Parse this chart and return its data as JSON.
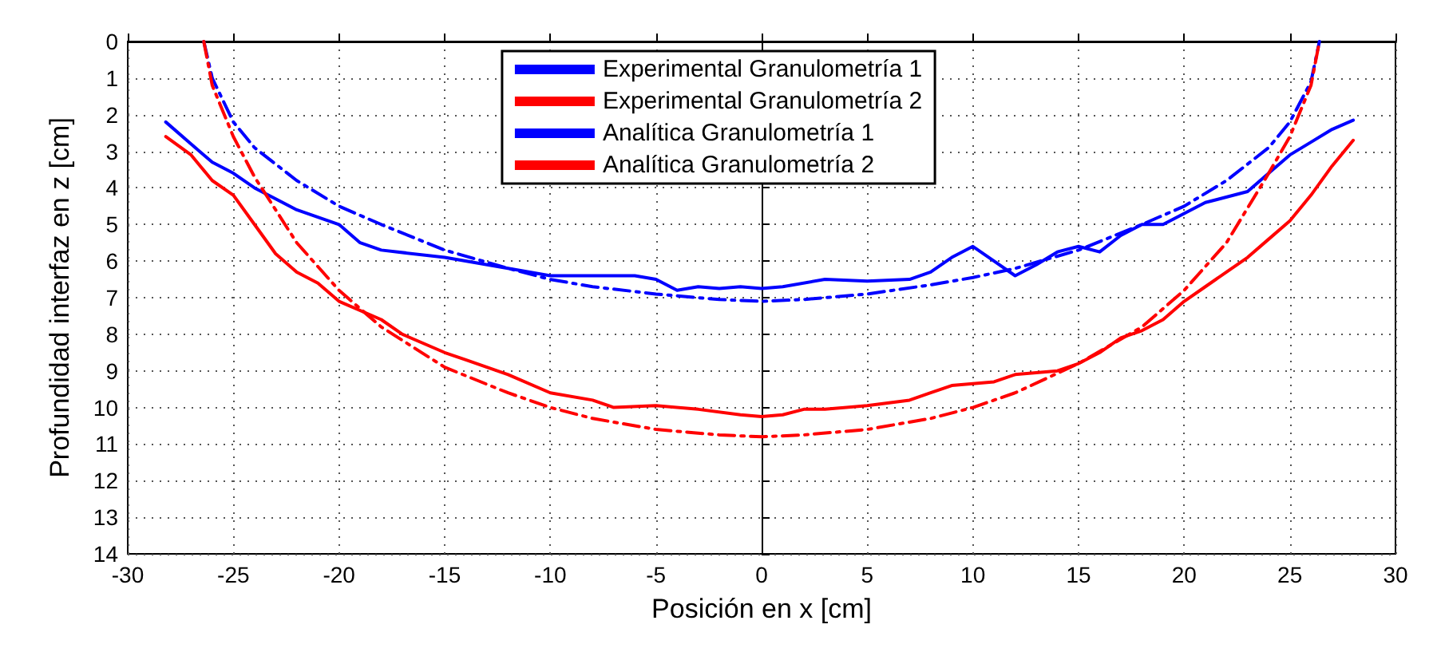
{
  "chart_data": {
    "type": "line",
    "xlabel": "Posición en x [cm]",
    "ylabel": "Profundidad interfaz en z [cm]",
    "xlim": [
      -30,
      30
    ],
    "xticks": [
      -30,
      -25,
      -20,
      -15,
      -10,
      -5,
      0,
      5,
      10,
      15,
      20,
      25,
      30
    ],
    "ylim": [
      14,
      0
    ],
    "yticks": [
      0,
      1,
      2,
      3,
      4,
      5,
      6,
      7,
      8,
      9,
      10,
      11,
      12,
      13,
      14
    ],
    "grid": true,
    "legend": "top",
    "marker": "none",
    "series": [
      {
        "name": "Experimental Granulometría 1",
        "color": "#0000ff",
        "line_style": "solid",
        "x": [
          -28.2,
          -27,
          -26,
          -25,
          -24,
          -22,
          -20,
          -19,
          -18,
          -15,
          -12,
          -10,
          -8,
          -6,
          -5,
          -4,
          -3,
          -2,
          -1,
          0,
          1,
          3,
          5,
          7,
          8,
          9,
          10,
          11,
          12,
          13,
          14,
          15,
          16,
          17,
          18,
          19,
          20,
          21,
          23,
          24,
          25,
          26,
          27,
          28
        ],
        "values": [
          2.2,
          2.8,
          3.3,
          3.6,
          4.0,
          4.6,
          5.0,
          5.5,
          5.7,
          5.9,
          6.2,
          6.4,
          6.4,
          6.4,
          6.5,
          6.8,
          6.7,
          6.75,
          6.7,
          6.75,
          6.7,
          6.5,
          6.55,
          6.5,
          6.3,
          5.9,
          5.6,
          6.0,
          6.4,
          6.1,
          5.75,
          5.6,
          5.75,
          5.3,
          5.0,
          5.0,
          4.7,
          4.4,
          4.1,
          3.6,
          3.1,
          2.75,
          2.4,
          2.15
        ]
      },
      {
        "name": "Experimental Granulometría 2",
        "color": "#ff0000",
        "line_style": "solid",
        "x": [
          -28.2,
          -27,
          -26,
          -25,
          -24,
          -23,
          -22,
          -21,
          -20,
          -18,
          -17,
          -15,
          -14,
          -12,
          -10,
          -8,
          -7,
          -5,
          -3,
          -1,
          0,
          1,
          2,
          3,
          5,
          7,
          8,
          9,
          11,
          12,
          14,
          15,
          16,
          17,
          18,
          19,
          20,
          21,
          22,
          23,
          24,
          25,
          26,
          27,
          28
        ],
        "values": [
          2.6,
          3.1,
          3.8,
          4.2,
          5.0,
          5.8,
          6.3,
          6.6,
          7.1,
          7.6,
          8.0,
          8.5,
          8.7,
          9.1,
          9.6,
          9.8,
          10.0,
          9.95,
          10.05,
          10.2,
          10.25,
          10.2,
          10.05,
          10.05,
          9.95,
          9.8,
          9.6,
          9.4,
          9.3,
          9.1,
          9.0,
          8.8,
          8.5,
          8.1,
          7.9,
          7.6,
          7.1,
          6.7,
          6.3,
          5.9,
          5.4,
          4.9,
          4.2,
          3.4,
          2.7
        ]
      },
      {
        "name": "Analítica Granulometría 1",
        "color": "#0000ff",
        "line_style": "dashed",
        "x": [
          -26.4,
          -26,
          -25,
          -24,
          -22,
          -20,
          -18,
          -15,
          -12,
          -10,
          -8,
          -5,
          -2,
          0,
          2,
          5,
          8,
          10,
          12,
          15,
          18,
          20,
          22,
          24,
          25,
          26,
          26.4
        ],
        "values": [
          0,
          1.0,
          2.2,
          2.9,
          3.8,
          4.5,
          5.0,
          5.7,
          6.2,
          6.5,
          6.7,
          6.9,
          7.05,
          7.1,
          7.05,
          6.9,
          6.65,
          6.45,
          6.2,
          5.7,
          5.0,
          4.5,
          3.8,
          2.9,
          2.2,
          1.1,
          0
        ]
      },
      {
        "name": "Analítica Granulometría 2",
        "color": "#ff0000",
        "line_style": "dashed",
        "x": [
          -26.4,
          -26,
          -25,
          -24,
          -22,
          -20,
          -18,
          -15,
          -12,
          -10,
          -8,
          -5,
          -2,
          0,
          2,
          5,
          8,
          10,
          12,
          15,
          18,
          20,
          22,
          24,
          25,
          26,
          26.4
        ],
        "values": [
          0,
          1.2,
          2.6,
          3.7,
          5.5,
          6.8,
          7.8,
          8.9,
          9.6,
          10.0,
          10.3,
          10.6,
          10.75,
          10.8,
          10.75,
          10.6,
          10.3,
          10.0,
          9.6,
          8.8,
          7.8,
          6.8,
          5.5,
          3.6,
          2.6,
          1.2,
          0
        ]
      }
    ]
  }
}
